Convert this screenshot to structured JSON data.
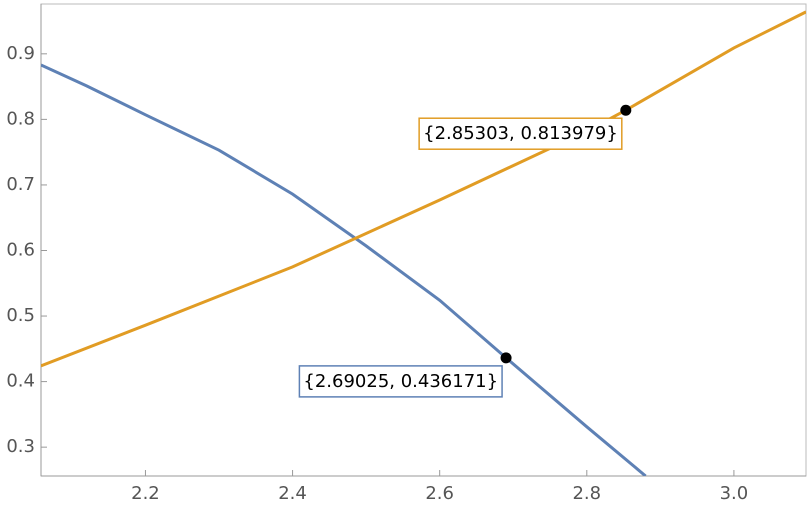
{
  "chart_data": {
    "type": "line",
    "series": [
      {
        "name": null,
        "color": "#5e81b5",
        "x": [
          2.058,
          2.12,
          2.2,
          2.3,
          2.4,
          2.5,
          2.6,
          2.69025,
          2.8,
          2.88
        ],
        "values": [
          0.883,
          0.851,
          0.807,
          0.753,
          0.686,
          0.607,
          0.524,
          0.436171,
          0.331,
          0.256
        ]
      },
      {
        "name": null,
        "color": "#e19c24",
        "x": [
          2.058,
          2.2,
          2.4,
          2.6,
          2.8,
          2.85303,
          3.0,
          3.098
        ],
        "values": [
          0.424,
          0.486,
          0.575,
          0.677,
          0.782,
          0.813979,
          0.909,
          0.964
        ]
      }
    ],
    "points": [
      {
        "x": 2.85303,
        "y": 0.813979,
        "label": "{2.85303, 0.813979}",
        "color": "#e19c24"
      },
      {
        "x": 2.69025,
        "y": 0.436171,
        "label": "{2.69025, 0.436171}",
        "color": "#5e81b5"
      }
    ],
    "xlim": [
      2.058,
      3.098
    ],
    "ylim": [
      0.256,
      0.976
    ],
    "xticks": [
      2.2,
      2.4,
      2.6,
      2.8,
      {
        "value": 3,
        "label": "3.0"
      }
    ],
    "yticks": [
      0.3,
      0.4,
      0.5,
      0.6,
      0.7,
      0.8,
      0.9
    ]
  }
}
